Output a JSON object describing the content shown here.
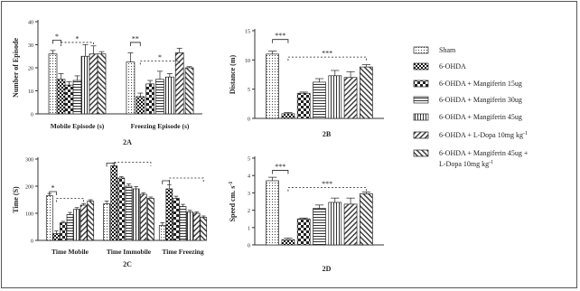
{
  "patterns": {
    "sham": "dots",
    "ohda": "checker",
    "m15": "bigcheck",
    "m30": "hlines",
    "m45": "vlines",
    "ldopa": "diag-right",
    "combo": "diag-left"
  },
  "legend": {
    "items": [
      {
        "key": "sham",
        "label": "Sham"
      },
      {
        "key": "ohda",
        "label": "6-OHDA"
      },
      {
        "key": "m15",
        "label": "6-OHDA + Mangiferin 15ug"
      },
      {
        "key": "m30",
        "label": "6-OHDA + Mangiferin 30ug"
      },
      {
        "key": "m45",
        "label": "6-OHDA + Mangiferin 45ug"
      },
      {
        "key": "ldopa",
        "label": "6-OHDA + L-Dopa 10mg kg",
        "sup": "-1"
      },
      {
        "key": "combo",
        "label": "6-OHDA + Mangiferin 45ug +",
        "label2": "L-Dopa 10mg kg",
        "sup": "-1"
      }
    ]
  },
  "chart_data": [
    {
      "id": "2A",
      "type": "bar",
      "panel_label": "2A",
      "ylabel": "Number of Episode",
      "ylim": [
        0,
        40
      ],
      "yticks": [
        0,
        10,
        20,
        30,
        40
      ],
      "categories": [
        "Mobile Episode (s)",
        "Freezing Episode (s)"
      ],
      "series": [
        {
          "key": "sham",
          "values": [
            26,
            22.5
          ],
          "err": [
            1.5,
            4
          ]
        },
        {
          "key": "ohda",
          "values": [
            15,
            7.5
          ],
          "err": [
            2.5,
            1.5
          ]
        },
        {
          "key": "m15",
          "values": [
            12.5,
            13
          ],
          "err": [
            1.5,
            1.5
          ]
        },
        {
          "key": "m30",
          "values": [
            14.5,
            15
          ],
          "err": [
            2,
            3.5
          ]
        },
        {
          "key": "m45",
          "values": [
            25,
            16
          ],
          "err": [
            5,
            1.5
          ]
        },
        {
          "key": "ldopa",
          "values": [
            26,
            26.5
          ],
          "err": [
            3.5,
            2
          ]
        },
        {
          "key": "combo",
          "values": [
            26,
            20
          ],
          "err": [
            1,
            0.5
          ]
        }
      ],
      "annotations": [
        {
          "label": "*",
          "cat": 0,
          "from": 0,
          "to": 1,
          "y": 32,
          "style": "solid"
        },
        {
          "label": "*",
          "cat": 0,
          "from": 1,
          "to": 5,
          "y": 31,
          "style": "dashed"
        },
        {
          "label": "**",
          "cat": 1,
          "from": 0,
          "to": 1,
          "y": 31,
          "style": "solid"
        },
        {
          "label": "*",
          "cat": 1,
          "from": 1,
          "to": 5,
          "y": 23,
          "style": "dashed"
        }
      ]
    },
    {
      "id": "2B",
      "type": "bar",
      "panel_label": "2B",
      "ylabel": "Distance (m)",
      "ylim": [
        0,
        15
      ],
      "yticks": [
        0,
        5,
        10,
        15
      ],
      "categories": [
        ""
      ],
      "series": [
        {
          "key": "sham",
          "values": [
            11
          ],
          "err": [
            0.5
          ]
        },
        {
          "key": "ohda",
          "values": [
            0.8
          ],
          "err": [
            0.2
          ]
        },
        {
          "key": "m15",
          "values": [
            4.3
          ],
          "err": [
            0.2
          ]
        },
        {
          "key": "m30",
          "values": [
            6.2
          ],
          "err": [
            0.6
          ]
        },
        {
          "key": "m45",
          "values": [
            7.3
          ],
          "err": [
            0.9
          ]
        },
        {
          "key": "ldopa",
          "values": [
            7
          ],
          "err": [
            1
          ]
        },
        {
          "key": "combo",
          "values": [
            8.8
          ],
          "err": [
            0.4
          ]
        }
      ],
      "annotations": [
        {
          "label": "***",
          "cat": 0,
          "from": 0,
          "to": 1,
          "y": 13.5,
          "style": "solid"
        },
        {
          "label": "***",
          "cat": 0,
          "from": 1,
          "to": 6,
          "y": 10.5,
          "style": "dashed"
        }
      ]
    },
    {
      "id": "2C",
      "type": "bar",
      "panel_label": "2C",
      "ylabel": "Time (S)",
      "ylim": [
        0,
        300
      ],
      "yticks": [
        0,
        100,
        200,
        300
      ],
      "categories": [
        "Time Mobile",
        "Time Immobile",
        "Time Freezing"
      ],
      "series": [
        {
          "key": "sham",
          "values": [
            165,
            135,
            55
          ],
          "err": [
            8,
            10,
            10
          ]
        },
        {
          "key": "ohda",
          "values": [
            25,
            275,
            190
          ],
          "err": [
            10,
            10,
            15
          ]
        },
        {
          "key": "m15",
          "values": [
            65,
            230,
            155
          ],
          "err": [
            5,
            5,
            8
          ]
        },
        {
          "key": "m30",
          "values": [
            95,
            200,
            125
          ],
          "err": [
            8,
            8,
            8
          ]
        },
        {
          "key": "m45",
          "values": [
            115,
            190,
            105
          ],
          "err": [
            6,
            8,
            6
          ]
        },
        {
          "key": "ldopa",
          "values": [
            130,
            170,
            100
          ],
          "err": [
            6,
            6,
            5
          ]
        },
        {
          "key": "combo",
          "values": [
            145,
            155,
            85
          ],
          "err": [
            5,
            5,
            5
          ]
        }
      ],
      "annotations": [
        {
          "label": "*",
          "cat": 0,
          "from": 0,
          "to": 1,
          "y": 180,
          "style": "solid"
        },
        {
          "label": "",
          "cat": 0,
          "from": 1,
          "to": 5,
          "y": 155,
          "style": "dashed"
        },
        {
          "label": "",
          "cat": 1,
          "from": 0,
          "to": 1,
          "y": 285,
          "style": "solid"
        },
        {
          "label": "",
          "cat": 1,
          "from": 1,
          "to": 6,
          "y": 288,
          "style": "dashed"
        },
        {
          "label": "",
          "cat": 2,
          "from": 0,
          "to": 1,
          "y": 220,
          "style": "solid"
        },
        {
          "label": "",
          "cat": 2,
          "from": 1,
          "to": 6,
          "y": 230,
          "style": "dashed"
        }
      ]
    },
    {
      "id": "2D",
      "type": "bar",
      "panel_label": "2D",
      "ylabel": "Speed cm. s",
      "ylabel_sup": "-1",
      "ylim": [
        0,
        5
      ],
      "yticks": [
        0,
        1,
        2,
        3,
        4,
        5
      ],
      "categories": [
        ""
      ],
      "series": [
        {
          "key": "sham",
          "values": [
            3.7
          ],
          "err": [
            0.2
          ]
        },
        {
          "key": "ohda",
          "values": [
            0.3
          ],
          "err": [
            0.1
          ]
        },
        {
          "key": "m15",
          "values": [
            1.5
          ],
          "err": [
            0.05
          ]
        },
        {
          "key": "m30",
          "values": [
            2.1
          ],
          "err": [
            0.2
          ]
        },
        {
          "key": "m45",
          "values": [
            2.45
          ],
          "err": [
            0.25
          ]
        },
        {
          "key": "ldopa",
          "values": [
            2.35
          ],
          "err": [
            0.35
          ]
        },
        {
          "key": "combo",
          "values": [
            2.95
          ],
          "err": [
            0.1
          ]
        }
      ],
      "annotations": [
        {
          "label": "***",
          "cat": 0,
          "from": 0,
          "to": 1,
          "y": 4.3,
          "style": "solid"
        },
        {
          "label": "***",
          "cat": 0,
          "from": 1,
          "to": 6,
          "y": 3.3,
          "style": "dashed"
        }
      ]
    }
  ]
}
